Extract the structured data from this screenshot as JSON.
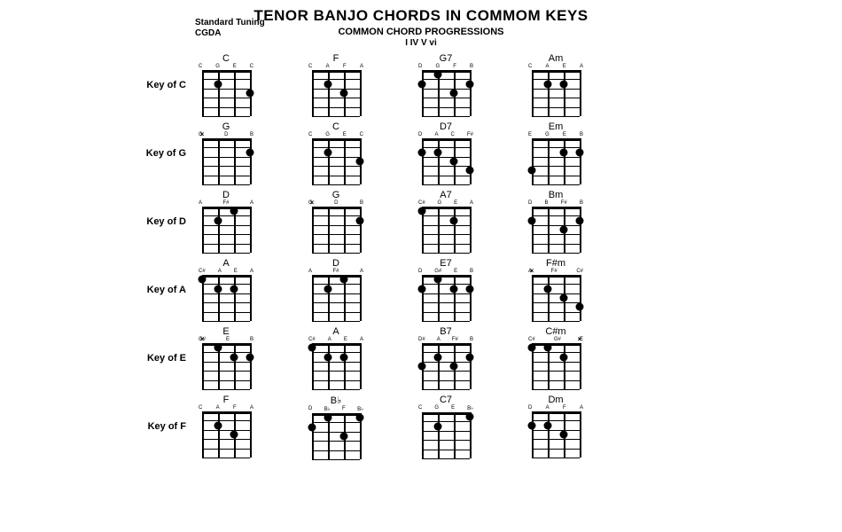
{
  "title": "TENOR BANJO CHORDS IN COMMOM KEYS",
  "subtitle": "COMMON CHORD PROGRESSIONS",
  "sub2": "I IV V vi",
  "tuning1": "Standard Tuning",
  "tuning2": "CGDA",
  "layout": {
    "chord_width": 54,
    "chord_height": 52,
    "frets": 5,
    "strings": 4,
    "dot_size": 9,
    "colors": {
      "bg": "#ffffff",
      "fg": "#000000"
    }
  },
  "rows": [
    {
      "label": "Key of C",
      "chords": [
        {
          "name": "C",
          "notes": [
            "C",
            "G",
            "E",
            "C"
          ],
          "dots": [
            [
              2,
              2
            ],
            [
              4,
              3
            ]
          ],
          "mutes": [],
          "opens": []
        },
        {
          "name": "F",
          "notes": [
            "C",
            "A",
            "F",
            "A"
          ],
          "dots": [
            [
              2,
              2
            ],
            [
              3,
              3
            ]
          ],
          "mutes": [],
          "opens": []
        },
        {
          "name": "G7",
          "notes": [
            "D",
            "G",
            "F",
            "B"
          ],
          "dots": [
            [
              1,
              2
            ],
            [
              2,
              1
            ],
            [
              3,
              3
            ],
            [
              4,
              2
            ]
          ],
          "mutes": [],
          "opens": []
        },
        {
          "name": "Am",
          "notes": [
            "C",
            "A",
            "E",
            "A"
          ],
          "dots": [
            [
              2,
              2
            ],
            [
              3,
              2
            ]
          ],
          "mutes": [],
          "opens": []
        }
      ]
    },
    {
      "label": "Key of G",
      "chords": [
        {
          "name": "G",
          "notes": [
            "G",
            "D",
            "B"
          ],
          "dots": [
            [
              4,
              2
            ]
          ],
          "mutes": [
            1
          ],
          "opens": []
        },
        {
          "name": "C",
          "notes": [
            "C",
            "G",
            "E",
            "C"
          ],
          "dots": [
            [
              2,
              2
            ],
            [
              4,
              3
            ]
          ],
          "mutes": [],
          "opens": []
        },
        {
          "name": "D7",
          "notes": [
            "D",
            "A",
            "C",
            "F#"
          ],
          "dots": [
            [
              1,
              2
            ],
            [
              2,
              2
            ],
            [
              3,
              3
            ],
            [
              4,
              4
            ]
          ],
          "mutes": [],
          "opens": []
        },
        {
          "name": "Em",
          "notes": [
            "E",
            "G",
            "E",
            "B"
          ],
          "dots": [
            [
              1,
              4
            ],
            [
              3,
              2
            ],
            [
              4,
              2
            ]
          ],
          "mutes": [],
          "opens": []
        }
      ]
    },
    {
      "label": "Key of D",
      "chords": [
        {
          "name": "D",
          "notes": [
            "A",
            "F#",
            "A"
          ],
          "dots": [
            [
              2,
              2
            ],
            [
              3,
              1
            ]
          ],
          "mutes": [],
          "opens": []
        },
        {
          "name": "G",
          "notes": [
            "G",
            "D",
            "B"
          ],
          "dots": [
            [
              4,
              2
            ]
          ],
          "mutes": [
            1
          ],
          "opens": []
        },
        {
          "name": "A7",
          "notes": [
            "C#",
            "G",
            "E",
            "A"
          ],
          "dots": [
            [
              1,
              1
            ],
            [
              3,
              2
            ]
          ],
          "mutes": [],
          "opens": []
        },
        {
          "name": "Bm",
          "notes": [
            "D",
            "B",
            "F#",
            "B"
          ],
          "dots": [
            [
              1,
              2
            ],
            [
              3,
              3
            ],
            [
              4,
              2
            ]
          ],
          "mutes": [],
          "opens": []
        }
      ]
    },
    {
      "label": "Key of A",
      "chords": [
        {
          "name": "A",
          "notes": [
            "C#",
            "A",
            "E",
            "A"
          ],
          "dots": [
            [
              1,
              1
            ],
            [
              2,
              2
            ],
            [
              3,
              2
            ]
          ],
          "mutes": [],
          "opens": []
        },
        {
          "name": "D",
          "notes": [
            "A",
            "F#",
            "A"
          ],
          "dots": [
            [
              2,
              2
            ],
            [
              3,
              1
            ]
          ],
          "mutes": [],
          "opens": []
        },
        {
          "name": "E7",
          "notes": [
            "D",
            "G#",
            "E",
            "B"
          ],
          "dots": [
            [
              1,
              2
            ],
            [
              2,
              1
            ],
            [
              3,
              2
            ],
            [
              4,
              2
            ]
          ],
          "mutes": [],
          "opens": []
        },
        {
          "name": "F#m",
          "notes": [
            "A",
            "F#",
            "C#"
          ],
          "dots": [
            [
              2,
              2
            ],
            [
              3,
              3
            ],
            [
              4,
              4
            ]
          ],
          "mutes": [
            1
          ],
          "opens": []
        }
      ]
    },
    {
      "label": "Key of E",
      "chords": [
        {
          "name": "E",
          "notes": [
            "G#",
            "E",
            "B"
          ],
          "dots": [
            [
              2,
              1
            ],
            [
              3,
              2
            ],
            [
              4,
              2
            ]
          ],
          "mutes": [
            1
          ],
          "opens": []
        },
        {
          "name": "A",
          "notes": [
            "C#",
            "A",
            "E",
            "A"
          ],
          "dots": [
            [
              1,
              1
            ],
            [
              2,
              2
            ],
            [
              3,
              2
            ]
          ],
          "mutes": [],
          "opens": []
        },
        {
          "name": "B7",
          "notes": [
            "D#",
            "A",
            "F#",
            "B"
          ],
          "dots": [
            [
              1,
              3
            ],
            [
              2,
              2
            ],
            [
              3,
              3
            ],
            [
              4,
              2
            ]
          ],
          "mutes": [],
          "opens": []
        },
        {
          "name": "C#m",
          "notes": [
            "C#",
            "G#",
            "E"
          ],
          "dots": [
            [
              1,
              1
            ],
            [
              2,
              1
            ],
            [
              3,
              2
            ]
          ],
          "mutes": [
            4
          ],
          "opens": []
        }
      ]
    },
    {
      "label": "Key of F",
      "chords": [
        {
          "name": "F",
          "notes": [
            "C",
            "A",
            "F",
            "A"
          ],
          "dots": [
            [
              2,
              2
            ],
            [
              3,
              3
            ]
          ],
          "mutes": [],
          "opens": []
        },
        {
          "name": "B♭",
          "notes": [
            "D",
            "B♭",
            "F",
            "B♭"
          ],
          "dots": [
            [
              1,
              2
            ],
            [
              2,
              1
            ],
            [
              3,
              3
            ],
            [
              4,
              1
            ]
          ],
          "mutes": [],
          "opens": []
        },
        {
          "name": "C7",
          "notes": [
            "C",
            "G",
            "E",
            "B♭"
          ],
          "dots": [
            [
              2,
              2
            ],
            [
              4,
              1
            ]
          ],
          "mutes": [],
          "opens": []
        },
        {
          "name": "Dm",
          "notes": [
            "D",
            "A",
            "F",
            "A"
          ],
          "dots": [
            [
              1,
              2
            ],
            [
              2,
              2
            ],
            [
              3,
              3
            ]
          ],
          "mutes": [],
          "opens": []
        }
      ]
    }
  ]
}
